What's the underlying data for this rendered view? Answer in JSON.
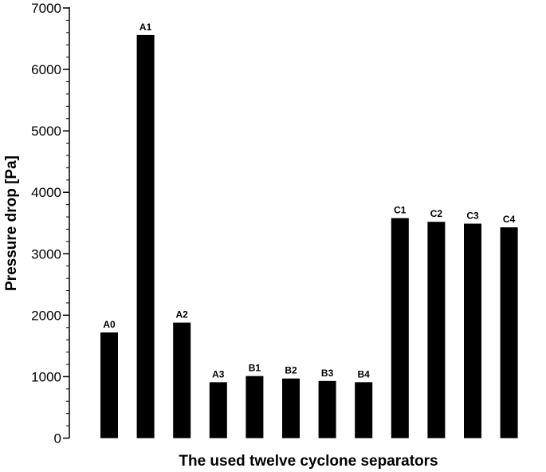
{
  "chart_data": {
    "type": "bar",
    "title": "",
    "xlabel": "The used twelve cyclone separators",
    "ylabel": "Pressure drop [Pa]",
    "ylim": [
      0,
      7000
    ],
    "yticks": [
      0,
      1000,
      2000,
      3000,
      4000,
      5000,
      6000,
      7000
    ],
    "minor_ytick_step": 200,
    "grid": false,
    "legend": "none",
    "bar_color": "#000000",
    "categories": [
      "A0",
      "A1",
      "A2",
      "A3",
      "B1",
      "B2",
      "B3",
      "B4",
      "C1",
      "C2",
      "C3",
      "C4"
    ],
    "values": [
      1720,
      6560,
      1880,
      910,
      1010,
      970,
      930,
      910,
      3580,
      3520,
      3490,
      3430
    ]
  }
}
